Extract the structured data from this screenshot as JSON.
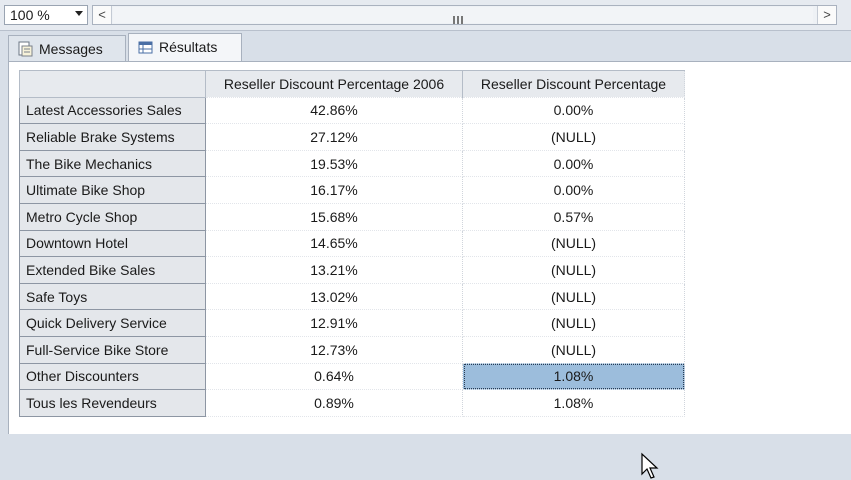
{
  "toolbar": {
    "zoom_value": "100 %",
    "scroll_left": "<",
    "scroll_right": ">"
  },
  "tabs": [
    {
      "label": "Messages",
      "icon": "messages-icon"
    },
    {
      "label": "Résultats",
      "icon": "grid-icon",
      "active": true
    }
  ],
  "grid": {
    "columns": [
      "Reseller Discount Percentage 2006",
      "Reseller Discount Percentage"
    ],
    "rows": [
      {
        "name": "Latest Accessories Sales",
        "v2006": "42.86%",
        "v": "0.00%"
      },
      {
        "name": "Reliable Brake Systems",
        "v2006": "27.12%",
        "v": "(NULL)"
      },
      {
        "name": "The Bike Mechanics",
        "v2006": "19.53%",
        "v": "0.00%"
      },
      {
        "name": "Ultimate Bike Shop",
        "v2006": "16.17%",
        "v": "0.00%"
      },
      {
        "name": "Metro Cycle Shop",
        "v2006": "15.68%",
        "v": "0.57%"
      },
      {
        "name": "Downtown Hotel",
        "v2006": "14.65%",
        "v": "(NULL)"
      },
      {
        "name": "Extended Bike Sales",
        "v2006": "13.21%",
        "v": "(NULL)"
      },
      {
        "name": "Safe Toys",
        "v2006": "13.02%",
        "v": "(NULL)"
      },
      {
        "name": "Quick Delivery Service",
        "v2006": "12.91%",
        "v": "(NULL)"
      },
      {
        "name": "Full-Service Bike Store",
        "v2006": "12.73%",
        "v": "(NULL)"
      },
      {
        "name": "Other Discounters",
        "v2006": "0.64%",
        "v": "1.08%"
      },
      {
        "name": "Tous les Revendeurs",
        "v2006": "0.89%",
        "v": "1.08%"
      }
    ],
    "selected_cell": {
      "row": "Other Discounters",
      "column": "Reseller Discount Percentage"
    }
  },
  "colors": {
    "selection": "#9cbddc",
    "header": "#e7eaee",
    "background": "#d8dfe8"
  }
}
